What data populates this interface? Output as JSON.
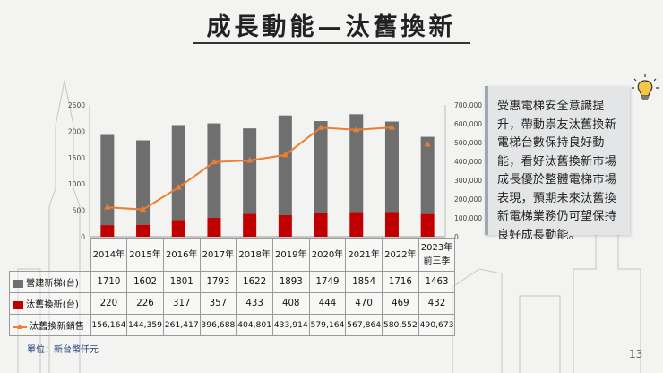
{
  "title": "成長動能—汰舊換新",
  "note": "受惠電梯安全意識提升，帶動祟友汰舊換新電梯台數保持良好動能，看好汰舊換新市場成長優於整體電梯市場表現，預期未來汰舊換新電梯業務仍可望保持良好成長動能。",
  "unit_label": "單位：新台幣仟元",
  "page_number": "13",
  "table": {
    "header_cols": [
      "2014年",
      "2015年",
      "2016年",
      "2017年",
      "2018年",
      "2019年",
      "2020年",
      "2021年",
      "2022年",
      "2023年\n前三季"
    ],
    "rows": [
      {
        "label": "營建新梯(台)",
        "key": "grey",
        "cells": [
          "1710",
          "1602",
          "1801",
          "1793",
          "1622",
          "1893",
          "1749",
          "1854",
          "1716",
          "1463"
        ]
      },
      {
        "label": "汰舊換新(台)",
        "key": "red",
        "cells": [
          "220",
          "226",
          "317",
          "357",
          "433",
          "408",
          "444",
          "470",
          "469",
          "432"
        ]
      },
      {
        "label": "汰舊換新銷售",
        "key": "line",
        "cells": [
          "156,164",
          "144,359",
          "261,417",
          "396,688",
          "404,801",
          "433,914",
          "579,164",
          "567,864",
          "580,552",
          "490,673"
        ]
      }
    ]
  },
  "chart_data": {
    "type": "bar",
    "stacked": true,
    "categories": [
      "2014年",
      "2015年",
      "2016年",
      "2017年",
      "2018年",
      "2019年",
      "2020年",
      "2021年",
      "2022年",
      "2023年前三季"
    ],
    "series": [
      {
        "name": "營建新梯(台)",
        "axis": "left",
        "color": "#6f6f6f",
        "values": [
          1710,
          1602,
          1801,
          1793,
          1622,
          1893,
          1749,
          1854,
          1716,
          1463
        ]
      },
      {
        "name": "汰舊換新(台)",
        "axis": "left",
        "color": "#c00000",
        "values": [
          220,
          226,
          317,
          357,
          433,
          408,
          444,
          470,
          469,
          432
        ]
      },
      {
        "name": "汰舊換新銷售",
        "axis": "right",
        "type": "line",
        "color": "#ed7d31",
        "values": [
          156164,
          144359,
          261417,
          396688,
          404801,
          433914,
          579164,
          567864,
          580552,
          490673
        ]
      }
    ],
    "y_left": {
      "min": 0,
      "max": 2500,
      "ticks": [
        "0",
        "500",
        "1000",
        "1500",
        "2000",
        "2500"
      ]
    },
    "y_right": {
      "min": 0,
      "max": 700000,
      "ticks": [
        "0",
        "100,000",
        "200,000",
        "300,000",
        "400,000",
        "500,000",
        "600,000",
        "700,000"
      ]
    }
  }
}
